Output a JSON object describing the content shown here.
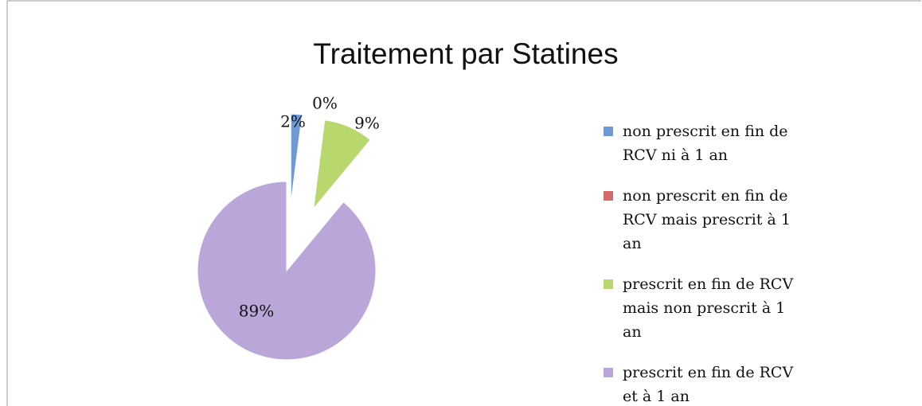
{
  "chart_data": {
    "type": "pie",
    "title": "Traitement par Statines",
    "categories": [
      "non prescrit en fin de RCV ni à 1 an",
      "non prescrit en fin de RCV mais prescrit à 1 an",
      "prescrit en fin de RCV mais non prescrit à 1 an",
      "prescrit en fin de RCV et à 1 an"
    ],
    "values": [
      2,
      0,
      9,
      89
    ],
    "value_labels": [
      "2%",
      "0%",
      "9%",
      "89%"
    ],
    "colors": [
      "#6f9bd4",
      "#d46b68",
      "#b8d76c",
      "#baa6d8"
    ],
    "legend": "right"
  }
}
